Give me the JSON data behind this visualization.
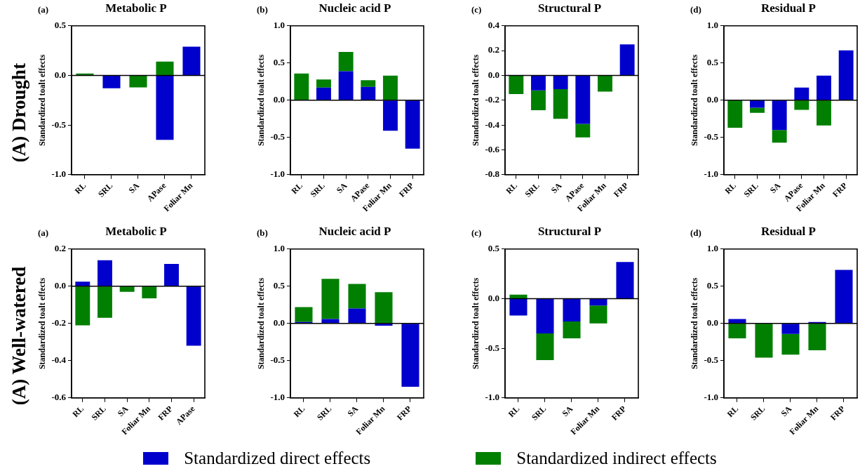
{
  "chart_data": [
    {
      "type": "bar",
      "title": "Metabolic P",
      "annotations": [
        "(a)",
        "(A) Drought"
      ],
      "ylabel": "Standardized toalt effects",
      "categories": [
        "RL",
        "SRL",
        "SA",
        "APase",
        "Foliar Mn"
      ],
      "stacked": true,
      "ylim": [
        -1,
        0.5
      ],
      "yticks": [
        {
          "value": -1,
          "label": "-1.0"
        },
        -0.5,
        {
          "value": 0,
          "label": "0.0"
        },
        0.5
      ],
      "series": [
        {
          "color": "#0000cc",
          "values": [
            null,
            -0.13,
            null,
            -0.65,
            0.29
          ]
        },
        {
          "color": "#007f00",
          "values": [
            0.02,
            null,
            -0.12,
            0.14,
            null
          ]
        }
      ]
    },
    {
      "type": "bar",
      "title": "Nucleic acid P",
      "annotations": [
        "(b)"
      ],
      "ylabel": "Standardized toalt effects",
      "categories": [
        "RL",
        "SRL",
        "SA",
        "APase",
        "Foliar Mn",
        "FRP"
      ],
      "stacked": true,
      "ylim": [
        -1,
        1
      ],
      "yticks": [
        {
          "value": -1,
          "label": "-1.0"
        },
        -0.5,
        {
          "value": 0,
          "label": "0.0"
        },
        0.5,
        {
          "value": 1,
          "label": "1.0"
        }
      ],
      "series": [
        {
          "color": "#0000cc",
          "values": [
            null,
            0.17,
            0.39,
            0.18,
            -0.41,
            -0.65
          ]
        },
        {
          "color": "#007f00",
          "values": [
            0.36,
            0.11,
            0.26,
            0.09,
            0.33,
            null
          ]
        }
      ]
    },
    {
      "type": "bar",
      "title": "Structural P",
      "annotations": [
        "(c)"
      ],
      "ylabel": "Standardized toalt effects",
      "categories": [
        "RL",
        "SRL",
        "SA",
        "APase",
        "Foliar Mn",
        "FRP"
      ],
      "stacked": true,
      "ylim": [
        -0.8,
        0.4
      ],
      "yticks": [
        -0.8,
        -0.6,
        -0.4,
        -0.2,
        {
          "value": 0,
          "label": "0.0"
        },
        0.2,
        0.4
      ],
      "series": [
        {
          "color": "#0000cc",
          "values": [
            null,
            -0.12,
            -0.11,
            -0.39,
            null,
            0.25
          ]
        },
        {
          "color": "#007f00",
          "values": [
            -0.15,
            -0.16,
            -0.24,
            -0.11,
            -0.13,
            null
          ]
        }
      ]
    },
    {
      "type": "bar",
      "title": "Residual P",
      "annotations": [
        "(d)"
      ],
      "ylabel": "Standardized toalt effects",
      "categories": [
        "RL",
        "SRL",
        "SA",
        "APase",
        "Foliar Mn",
        "FRP"
      ],
      "stacked": true,
      "ylim": [
        -1,
        1
      ],
      "yticks": [
        {
          "value": -1,
          "label": "-1.0"
        },
        -0.5,
        {
          "value": 0,
          "label": "0.0"
        },
        0.5,
        {
          "value": 1,
          "label": "1.0"
        }
      ],
      "series": [
        {
          "color": "#0000cc",
          "values": [
            null,
            -0.1,
            -0.4,
            0.17,
            0.33,
            0.67
          ]
        },
        {
          "color": "#007f00",
          "values": [
            -0.37,
            -0.07,
            -0.17,
            -0.13,
            -0.34,
            null
          ]
        }
      ]
    },
    {
      "type": "bar",
      "title": "Metabolic P",
      "annotations": [
        "(a)",
        "(A) Well-watered"
      ],
      "ylabel": "Standardized toalt effects",
      "categories": [
        "RL",
        "SRL",
        "SA",
        "Foliar Mn",
        "FRP",
        "APase"
      ],
      "stacked": true,
      "ylim": [
        -0.6,
        0.2
      ],
      "yticks": [
        -0.6,
        -0.4,
        -0.2,
        {
          "value": 0,
          "label": "0.0"
        },
        0.2
      ],
      "series": [
        {
          "color": "#0000cc",
          "values": [
            0.025,
            0.14,
            null,
            null,
            0.12,
            -0.32
          ]
        },
        {
          "color": "#007f00",
          "values": [
            -0.21,
            -0.17,
            -0.03,
            -0.065,
            null,
            null
          ]
        }
      ]
    },
    {
      "type": "bar",
      "title": "Nucleic acid P",
      "annotations": [
        "(b)"
      ],
      "ylabel": "Standardized toalt effects",
      "categories": [
        "RL",
        "SRL",
        "SA",
        "Foliar Mn",
        "FRP"
      ],
      "stacked": true,
      "ylim": [
        -1,
        1
      ],
      "yticks": [
        {
          "value": -1,
          "label": "-1.0"
        },
        -0.5,
        {
          "value": 0,
          "label": "0.0"
        },
        0.5,
        {
          "value": 1,
          "label": "1.0"
        }
      ],
      "series": [
        {
          "color": "#0000cc",
          "values": [
            0.02,
            0.06,
            0.2,
            -0.03,
            -0.85
          ]
        },
        {
          "color": "#007f00",
          "values": [
            0.2,
            0.54,
            0.33,
            0.42,
            null
          ]
        }
      ]
    },
    {
      "type": "bar",
      "title": "Structural P",
      "annotations": [
        "(c)"
      ],
      "ylabel": "Standardized toalt effects",
      "categories": [
        "RL",
        "SRL",
        "SA",
        "Foliar Mn",
        "FRP"
      ],
      "stacked": true,
      "ylim": [
        -1,
        0.5
      ],
      "yticks": [
        {
          "value": -1,
          "label": "-1.0"
        },
        -0.5,
        {
          "value": 0,
          "label": "0.0"
        },
        0.5
      ],
      "series": [
        {
          "color": "#0000cc",
          "values": [
            -0.17,
            -0.35,
            -0.23,
            -0.07,
            0.37
          ]
        },
        {
          "color": "#007f00",
          "values": [
            0.04,
            -0.27,
            -0.17,
            -0.18,
            null
          ]
        }
      ]
    },
    {
      "type": "bar",
      "title": "Residual P",
      "annotations": [
        "(d)"
      ],
      "ylabel": "Standardized toalt effects",
      "categories": [
        "RL",
        "SRL",
        "SA",
        "Foliar Mn",
        "FRP"
      ],
      "stacked": true,
      "ylim": [
        -1,
        1
      ],
      "yticks": [
        {
          "value": -1,
          "label": "-1.0"
        },
        -0.5,
        {
          "value": 0,
          "label": "0.0"
        },
        0.5,
        {
          "value": 1,
          "label": "1.0"
        }
      ],
      "legend": "bottom",
      "series": [
        {
          "name": "Standardized direct effects",
          "color": "#0000cc",
          "values": [
            0.06,
            null,
            -0.14,
            0.02,
            0.72
          ]
        },
        {
          "name": "Standardized indirect effects",
          "color": "#007f00",
          "values": [
            -0.2,
            -0.46,
            -0.28,
            -0.36,
            null
          ]
        }
      ]
    }
  ]
}
